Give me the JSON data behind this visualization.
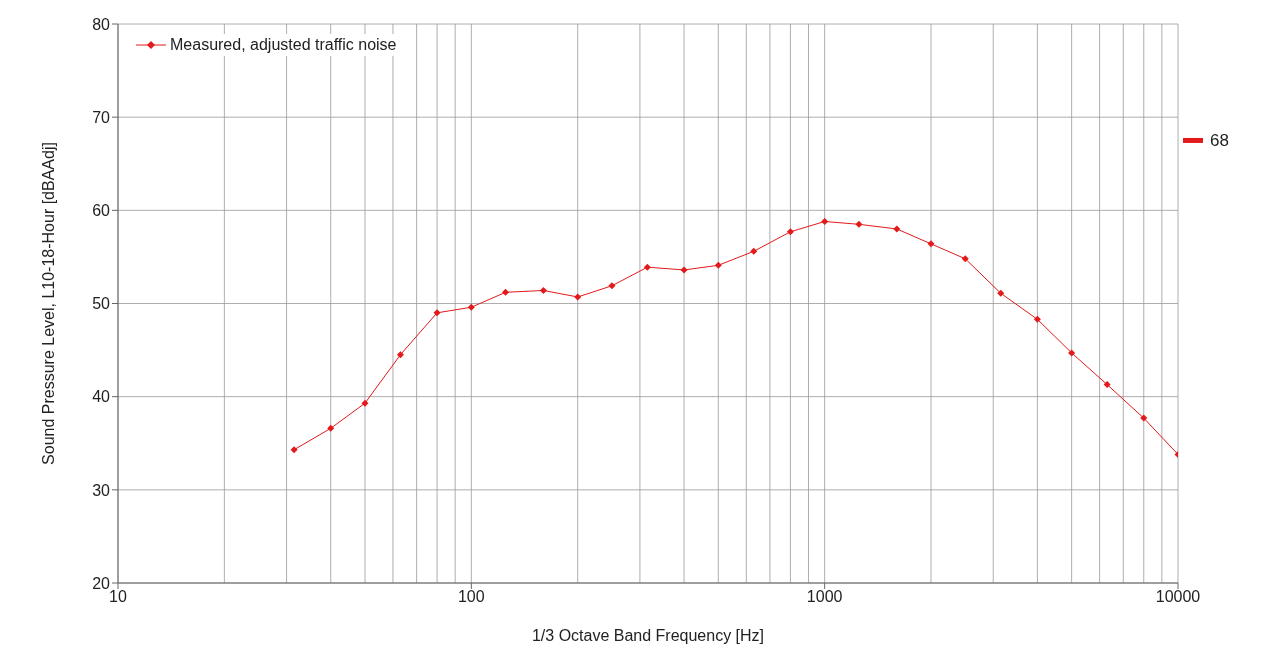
{
  "chart_data": {
    "type": "line",
    "xlabel": "1/3 Octave Band Frequency  [Hz]",
    "ylabel": "Sound Pressure Level, L10-18-Hour  [dBAAdj]",
    "x": [
      31.5,
      40,
      50,
      63,
      80,
      100,
      125,
      160,
      200,
      250,
      315,
      400,
      500,
      630,
      800,
      1000,
      1250,
      1600,
      2000,
      2500,
      3150,
      4000,
      5000,
      6300,
      8000,
      10000
    ],
    "series": [
      {
        "name": "Measured, adjusted traffic noise",
        "color": "#e31a1c",
        "values": [
          34.3,
          36.6,
          39.3,
          44.5,
          49.0,
          49.6,
          51.2,
          51.4,
          50.7,
          51.9,
          53.9,
          53.6,
          54.1,
          55.6,
          57.7,
          58.8,
          58.5,
          58.0,
          56.4,
          54.8,
          51.1,
          48.3,
          44.7,
          41.3,
          37.7,
          33.8
        ]
      }
    ],
    "xlim": [
      10,
      10000
    ],
    "xticks": [
      10,
      100,
      1000,
      10000
    ],
    "ylim": [
      20,
      80
    ],
    "yticks": [
      20,
      30,
      40,
      50,
      60,
      70,
      80
    ],
    "log": "x",
    "grid": true,
    "legend": "top left",
    "marker": "diamond",
    "line_style": "solid",
    "ref_lines": [
      {
        "axis": "y",
        "value": 67.5,
        "label": "68",
        "color": "#e31a1c"
      }
    ]
  }
}
